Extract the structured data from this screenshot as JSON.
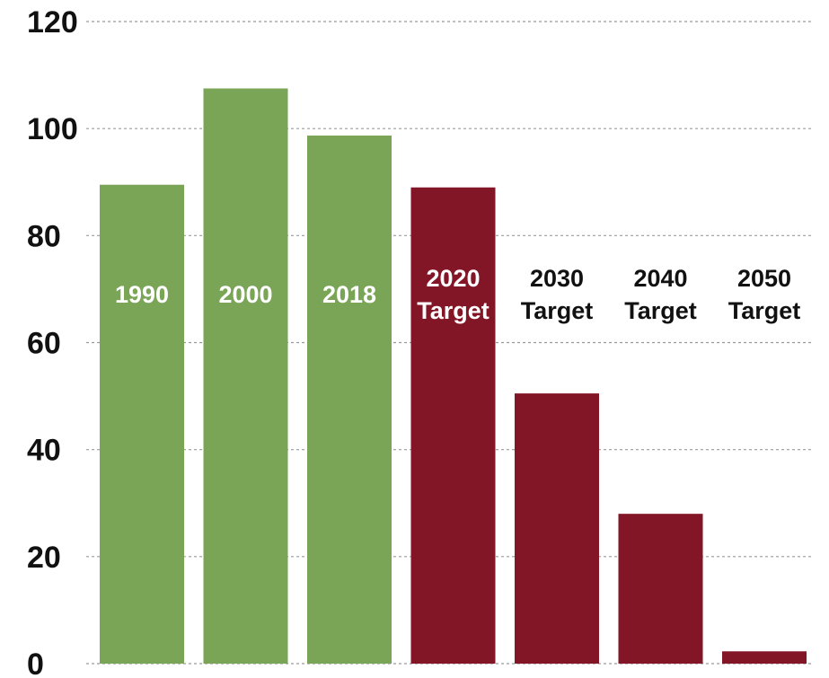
{
  "chart_data": {
    "type": "bar",
    "categories": [
      [
        "1990"
      ],
      [
        "2000"
      ],
      [
        "2018"
      ],
      [
        "2020",
        "Target"
      ],
      [
        "2030",
        "Target"
      ],
      [
        "2040",
        "Target"
      ],
      [
        "2050",
        "Target"
      ]
    ],
    "values": [
      89.5,
      107.5,
      98.7,
      89,
      50.5,
      28,
      2.3
    ],
    "bar_kinds": [
      "actual",
      "actual",
      "actual",
      "target",
      "target",
      "target",
      "target"
    ],
    "ylim": [
      0,
      120
    ],
    "yticks": [
      0,
      20,
      40,
      60,
      80,
      100,
      120
    ],
    "ytick_labels": [
      "0",
      "20",
      "40",
      "60",
      "80",
      "100",
      "120"
    ],
    "grid": true,
    "title": "",
    "xlabel": "",
    "ylabel": ""
  },
  "colors": {
    "actual": "#7aa556",
    "target": "#831626",
    "label_on_actual": "#ffffff",
    "label_on_target": "#ffffff",
    "label_outside": "#111111",
    "grid": "#9a9a9a"
  }
}
